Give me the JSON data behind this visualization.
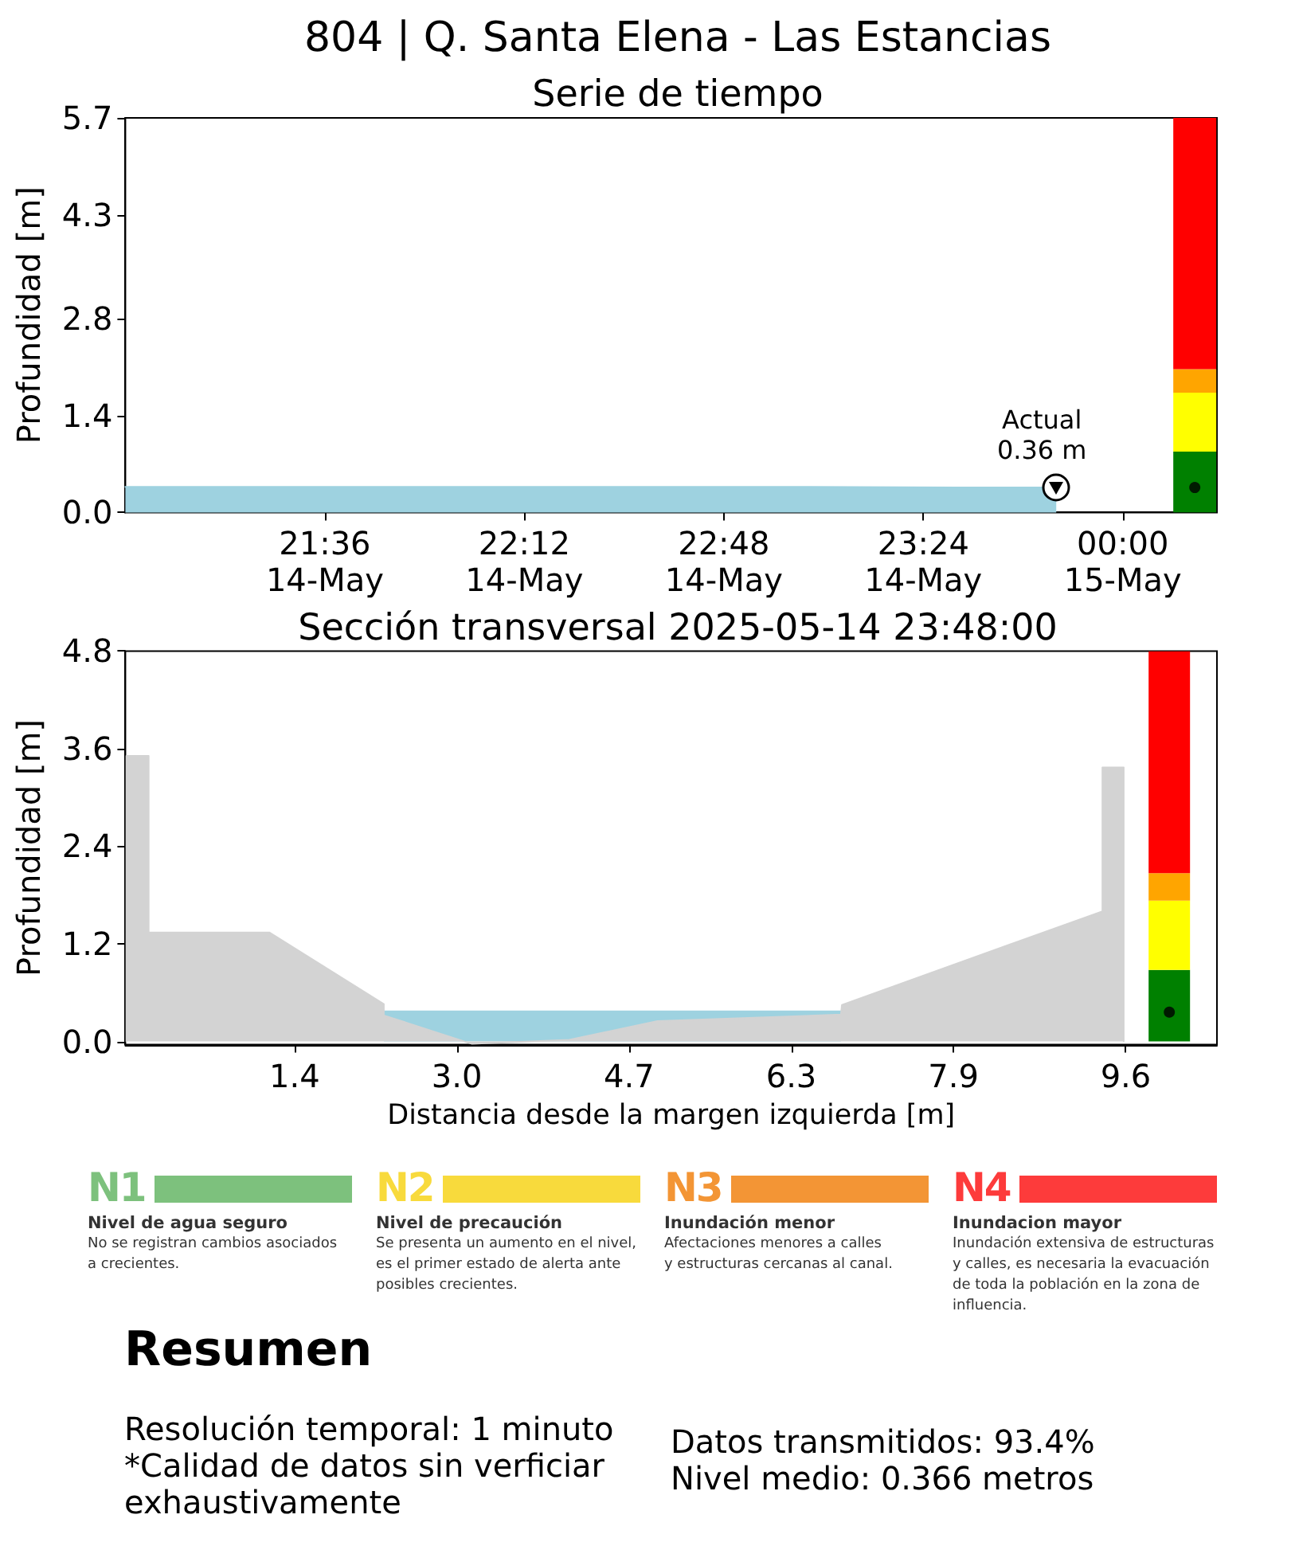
{
  "chart_data": [
    {
      "type": "area",
      "title": "804 | Q. Santa Elena - Las Estancias",
      "subtitle": "Serie de tiempo",
      "ylabel": "Profundidad [m]",
      "series": [
        {
          "x": [
            "2025-05-14T21:00",
            "2025-05-14T21:30",
            "2025-05-14T22:00",
            "2025-05-14T22:30",
            "2025-05-14T23:00",
            "2025-05-14T23:30",
            "2025-05-14T23:48"
          ],
          "color": "#9ed2e0",
          "values": [
            0.37,
            0.37,
            0.37,
            0.37,
            0.37,
            0.36,
            0.36
          ]
        },
        {
          "type": "bar",
          "x": [
            "2025-05-15T00:13"
          ],
          "color": "#008000",
          "base": [
            0
          ],
          "values": [
            0.88
          ]
        },
        {
          "type": "bar",
          "x": [
            "2025-05-15T00:13"
          ],
          "color": "#ffff00",
          "base": [
            0.88
          ],
          "values": [
            0.85
          ]
        },
        {
          "type": "bar",
          "x": [
            "2025-05-15T00:13"
          ],
          "color": "#ffa500",
          "base": [
            1.73
          ],
          "values": [
            0.34
          ]
        },
        {
          "type": "bar",
          "x": [
            "2025-05-15T00:13"
          ],
          "color": "#ff0000",
          "base": [
            2.07
          ],
          "values": [
            3.63
          ]
        },
        {
          "type": "scatter",
          "marker": "circle",
          "x": [
            "2025-05-15T00:13"
          ],
          "color": "#000000",
          "values": [
            0.36
          ]
        }
      ],
      "xlim": [
        "2025-05-14T21:00",
        "2025-05-15T00:17"
      ],
      "xticks": [
        {
          "value": "2025-05-14T21:36",
          "label": "21:36\n14-May"
        },
        {
          "value": "2025-05-14T22:12",
          "label": "22:12\n14-May"
        },
        {
          "value": "2025-05-14T22:48",
          "label": "22:48\n14-May"
        },
        {
          "value": "2025-05-14T23:24",
          "label": "23:24\n14-May"
        },
        {
          "value": "2025-05-15T00:00",
          "label": "00:00\n15-May"
        }
      ],
      "ylim": [
        0,
        5.7
      ],
      "yticks": [
        {
          "value": 0,
          "label": "0.0"
        },
        1.4,
        2.8,
        4.3,
        5.7
      ],
      "annotations": [
        {
          "text": "Actual\n0.36 m",
          "x": "2025-05-14T23:48",
          "y": 0.36
        }
      ]
    },
    {
      "type": "area",
      "title": "Sección transversal 2025-05-14 23:48:00",
      "xlabel": "Distancia desde la margen izquierda [m]",
      "ylabel": "Profundidad [m]",
      "series": [
        {
          "color": "#9ed2e0",
          "x": [
            2.28,
            6.79
          ],
          "values": [
            0.37,
            0.37
          ]
        },
        {
          "color": "#d3d3d3",
          "x": [
            -0.26,
            -0.26,
            -0.04,
            -0.04,
            1.15,
            2.28,
            2.28,
            3.15,
            4.11,
            4.98,
            6.79,
            6.8,
            9.37,
            9.37,
            9.58,
            9.58
          ],
          "values": [
            0,
            3.51,
            3.51,
            1.34,
            1.34,
            0.46,
            0.32,
            -0.03,
            0.02,
            0.25,
            0.33,
            0.45,
            1.6,
            3.37,
            3.37,
            0
          ]
        },
        {
          "type": "bar",
          "x": [
            10.03
          ],
          "color": "#008000",
          "base": [
            0
          ],
          "values": [
            0.88
          ]
        },
        {
          "type": "bar",
          "x": [
            10.03
          ],
          "color": "#ffff00",
          "base": [
            0.88
          ],
          "values": [
            0.85
          ]
        },
        {
          "type": "bar",
          "x": [
            10.03
          ],
          "color": "#ffa500",
          "base": [
            1.73
          ],
          "values": [
            0.34
          ]
        },
        {
          "type": "bar",
          "x": [
            10.03
          ],
          "color": "#ff0000",
          "base": [
            2.07
          ],
          "values": [
            2.73
          ]
        },
        {
          "type": "scatter",
          "marker": "circle",
          "x": [
            10.03
          ],
          "color": "#000000",
          "values": [
            0.36
          ]
        }
      ],
      "xlim": [
        -0.27,
        10.5
      ],
      "xticks": [
        1.4,
        {
          "value": 3,
          "label": "3.0"
        },
        4.7,
        6.3,
        7.9,
        9.6
      ],
      "ylim": [
        -0.04,
        4.8
      ],
      "yticks": [
        {
          "value": 0,
          "label": "0.0"
        },
        1.2,
        2.4,
        3.6,
        4.8
      ]
    },
    {
      "type": "other",
      "categories": [
        "N1",
        "N2",
        "N3",
        "N4"
      ],
      "colors": [
        "#7dc17d",
        "#f8da3c",
        "#f39535",
        "#fd3b3b"
      ],
      "annotations": [
        "Nivel de agua seguro",
        "No se registran cambios asociados\na crecientes.",
        "Nivel de precaución",
        "Se presenta un aumento en el nivel,\nes el primer estado de alerta ante\nposibles crecientes.",
        "Inundación menor",
        "Afectaciones menores a calles\ny estructuras cercanas al canal.",
        "Inundacion mayor",
        "Inundación extensiva de estructuras\ny calles, es necesaria la evacuación\nde toda la población en la zona de\ninfluencia."
      ]
    },
    {
      "type": "other",
      "title": "Resumen",
      "annotations": [
        "Resolución temporal: 1 minuto",
        "*Calidad de datos sin verficiar\nexhaustivamente",
        "Datos transmitidos: 93.4%",
        "Nivel medio: 0.366 metros"
      ]
    }
  ]
}
